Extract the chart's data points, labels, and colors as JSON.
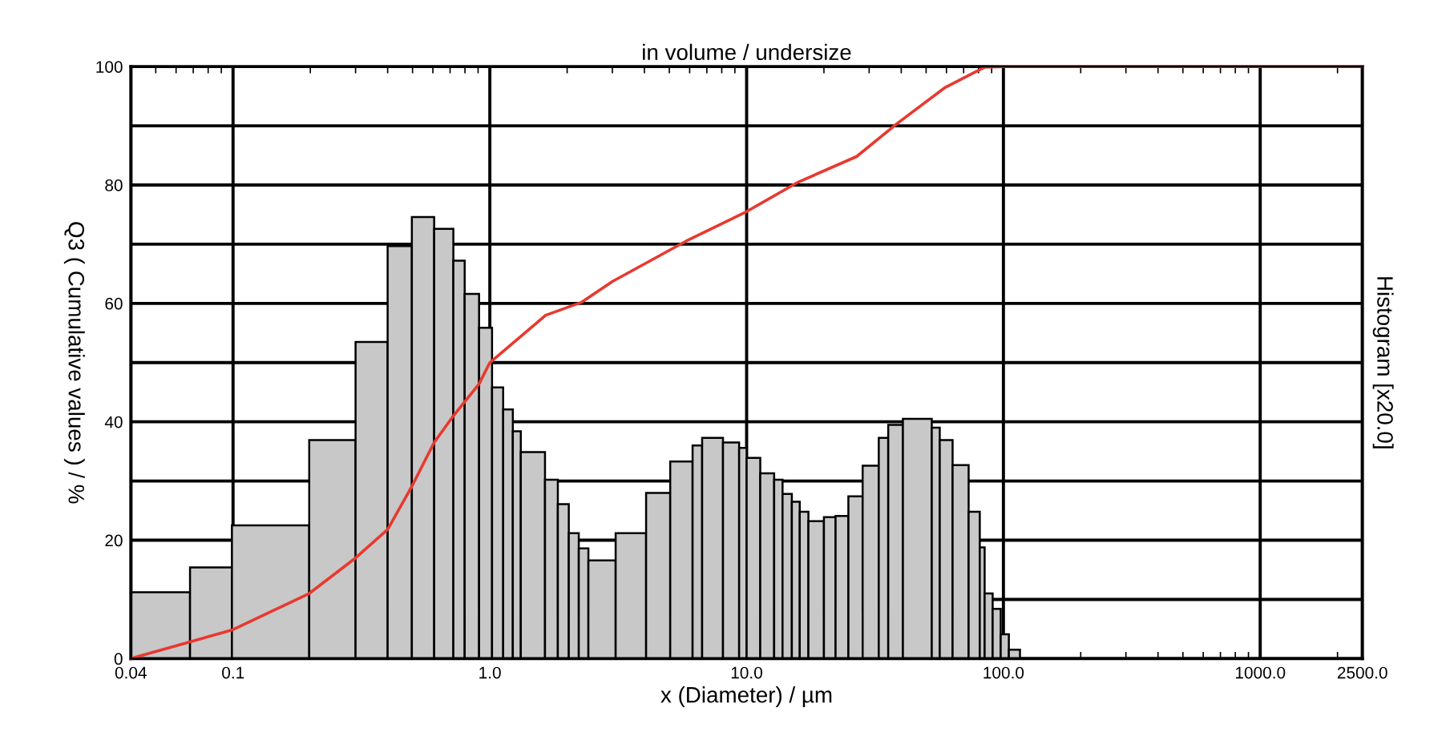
{
  "chart_data": {
    "type": "histogram",
    "title": "in volume / undersize",
    "xlabel": "x (Diameter) / µm",
    "ylabel": "Q3 ( Cumulative values ) / %",
    "y2label": "Histogram [x20.0]",
    "log": "x",
    "xlim": [
      0.04,
      2500
    ],
    "ylim": [
      0,
      100
    ],
    "xticks": [
      {
        "value": 0.04,
        "label": "0.04"
      },
      {
        "value": 0.1,
        "label": "0.1"
      },
      {
        "value": 1,
        "label": "1.0"
      },
      {
        "value": 10,
        "label": "10.0"
      },
      {
        "value": 100,
        "label": "100.0"
      },
      {
        "value": 1000,
        "label": "1000.0"
      },
      {
        "value": 2500,
        "label": "2500.0"
      }
    ],
    "yticks": [
      0,
      {
        "value": 10,
        "label": null
      },
      20,
      {
        "value": 30,
        "label": null
      },
      40,
      {
        "value": 50,
        "label": null
      },
      60,
      {
        "value": 70,
        "label": null
      },
      80,
      {
        "value": 90,
        "label": null
      },
      100
    ],
    "grid": true,
    "series": [
      {
        "color": "#c8c8c8",
        "bins": [
          0.04,
          0.068,
          0.099,
          0.198,
          0.3,
          0.4,
          0.497,
          0.607,
          0.721,
          0.798,
          0.908,
          1.02,
          1.127,
          1.229,
          1.32,
          1.64,
          1.84,
          2.03,
          2.22,
          2.42,
          3.09,
          4.06,
          5.04,
          6.16,
          6.71,
          8.09,
          9.35,
          10.0,
          11.3,
          12.8,
          13.8,
          15.0,
          16.1,
          17.4,
          20.0,
          22.2,
          24.9,
          28.3,
          32.7,
          35.6,
          40.6,
          52.6,
          56.5,
          63.4,
          73.2,
          80.9,
          84.5,
          90.8,
          97.6,
          105,
          116
        ],
        "values": [
          11.2,
          15.4,
          22.5,
          36.9,
          53.5,
          69.7,
          74.6,
          72.6,
          67.2,
          61.6,
          55.9,
          45.8,
          42.1,
          38.4,
          34.9,
          30.2,
          26.1,
          21.2,
          18.6,
          16.6,
          21.2,
          28.0,
          33.3,
          36.0,
          37.3,
          36.5,
          35.6,
          33.9,
          31.3,
          30.2,
          27.8,
          26.5,
          24.8,
          23.2,
          23.9,
          24.1,
          27.4,
          32.6,
          37.3,
          39.5,
          40.5,
          39.0,
          36.9,
          32.7,
          24.8,
          18.8,
          11.0,
          8.4,
          4.1,
          1.5
        ]
      },
      {
        "type": "line",
        "color": "#e8392f",
        "x": [
          0.04,
          0.1,
          0.198,
          0.3,
          0.4,
          0.497,
          0.607,
          0.721,
          0.908,
          1.0,
          1.65,
          2.28,
          3.0,
          5.8,
          9.8,
          15.9,
          26.8,
          38.6,
          59.4,
          84.5,
          100,
          2500
        ],
        "values": [
          0,
          4.9,
          11,
          17,
          21.8,
          29.1,
          36.5,
          41,
          46.4,
          50,
          58,
          60.2,
          63.7,
          70.5,
          75.3,
          80.5,
          84.8,
          90.4,
          96.5,
          99.9,
          100,
          100
        ]
      }
    ]
  }
}
